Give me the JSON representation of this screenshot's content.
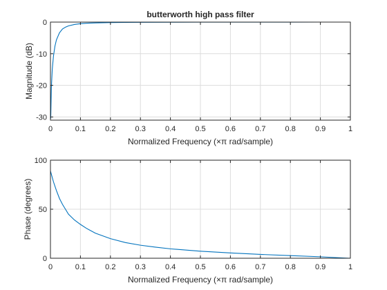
{
  "chart_data": [
    {
      "type": "line",
      "title": "butterworth high pass filter",
      "xlabel": "Normalized Frequency  (×π rad/sample)",
      "ylabel": "Magnitude (dB)",
      "xlim": [
        0,
        1
      ],
      "ylim": [
        -31,
        0
      ],
      "xticks": [
        0,
        0.1,
        0.2,
        0.3,
        0.4,
        0.5,
        0.6,
        0.7,
        0.8,
        0.9,
        1
      ],
      "xtick_labels": [
        "0",
        "0.1",
        "0.2",
        "0.3",
        "0.4",
        "0.5",
        "0.6",
        "0.7",
        "0.8",
        "0.9",
        "1"
      ],
      "yticks": [
        -30,
        -20,
        -10,
        0
      ],
      "ytick_labels": [
        "-30",
        "-20",
        "-10",
        "0"
      ],
      "grid": true,
      "color": "#0072bd",
      "series": [
        {
          "x": [
            0.001,
            0.003,
            0.006,
            0.01,
            0.015,
            0.02,
            0.03,
            0.04,
            0.05,
            0.06,
            0.08,
            0.1,
            0.12,
            0.15,
            0.2,
            0.25,
            0.3,
            0.4,
            0.5,
            0.6,
            0.7,
            0.8,
            0.9,
            1.0
          ],
          "y": [
            -30.5,
            -20.9,
            -15.0,
            -10.8,
            -7.6,
            -5.6,
            -3.4,
            -2.2,
            -1.6,
            -1.2,
            -0.75,
            -0.5,
            -0.37,
            -0.25,
            -0.15,
            -0.1,
            -0.07,
            -0.04,
            -0.025,
            -0.015,
            -0.01,
            -0.005,
            -0.002,
            0
          ]
        }
      ]
    },
    {
      "type": "line",
      "title": "",
      "xlabel": "Normalized Frequency  (×π rad/sample)",
      "ylabel": "Phase (degrees)",
      "xlim": [
        0,
        1
      ],
      "ylim": [
        0,
        100
      ],
      "xticks": [
        0,
        0.1,
        0.2,
        0.3,
        0.4,
        0.5,
        0.6,
        0.7,
        0.8,
        0.9,
        1
      ],
      "xtick_labels": [
        "0",
        "0.1",
        "0.2",
        "0.3",
        "0.4",
        "0.5",
        "0.6",
        "0.7",
        "0.8",
        "0.9",
        "1"
      ],
      "yticks": [
        0,
        50,
        100
      ],
      "ytick_labels": [
        "0",
        "50",
        "100"
      ],
      "grid": true,
      "color": "#0072bd",
      "series": [
        {
          "x": [
            0,
            0.01,
            0.02,
            0.03,
            0.04,
            0.05,
            0.06,
            0.08,
            0.1,
            0.12,
            0.15,
            0.2,
            0.25,
            0.3,
            0.35,
            0.4,
            0.5,
            0.6,
            0.7,
            0.8,
            0.9,
            0.95,
            1.0
          ],
          "y": [
            89,
            78,
            69,
            61,
            55,
            50,
            45,
            39,
            34.5,
            30.5,
            25.5,
            20,
            16,
            13.3,
            11.3,
            9.6,
            7.2,
            5.4,
            3.9,
            2.7,
            1.5,
            0.7,
            0
          ]
        }
      ]
    }
  ]
}
